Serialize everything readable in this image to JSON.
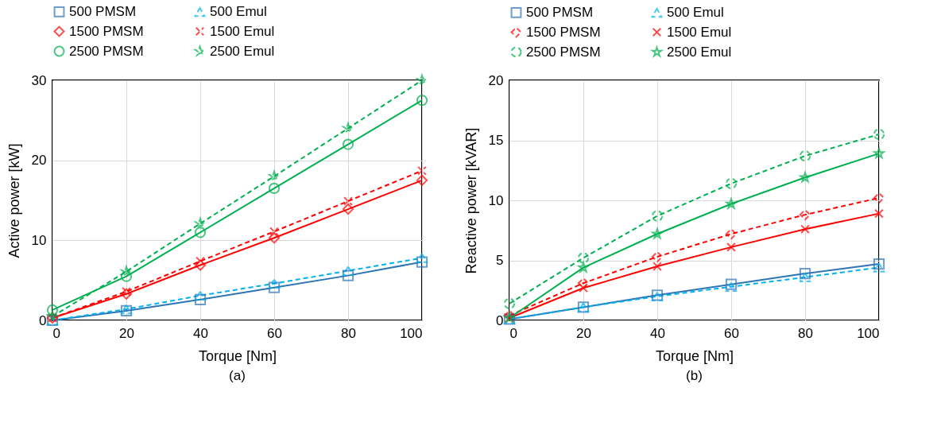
{
  "chart_data": [
    {
      "type": "line",
      "xlabel": "Torque [Nm]",
      "ylabel": "Active power [kW]",
      "x": [
        0,
        20,
        40,
        60,
        80,
        100
      ],
      "xlim": [
        0,
        100
      ],
      "xticks": [
        0,
        20,
        40,
        60,
        80,
        100
      ],
      "ylim": [
        0,
        30
      ],
      "yticks": [
        0,
        10,
        20,
        30
      ],
      "grid": true,
      "legend": "top",
      "annotations": [
        "(a)"
      ],
      "series": [
        {
          "name": "500 PMSM",
          "color": "#2e75b6",
          "marker": "square",
          "line_style": "solid",
          "values": [
            0,
            1.2,
            2.6,
            4.1,
            5.6,
            7.3
          ]
        },
        {
          "name": "500 Emul",
          "color": "#00b0f0",
          "marker": "triangle",
          "line_style": "dashed",
          "values": [
            0,
            1.4,
            3.1,
            4.6,
            6.2,
            7.8
          ]
        },
        {
          "name": "1500 PMSM",
          "color": "#ff0000",
          "marker": "diamond",
          "line_style": "solid",
          "values": [
            0.3,
            3.3,
            6.9,
            10.3,
            13.9,
            17.5
          ]
        },
        {
          "name": "1500 Emul",
          "color": "#ff0000",
          "marker": "cross",
          "line_style": "dashed",
          "values": [
            0.3,
            3.6,
            7.4,
            11.1,
            14.9,
            18.7
          ]
        },
        {
          "name": "2500 PMSM",
          "color": "#00b050",
          "marker": "circle",
          "line_style": "solid",
          "values": [
            1.3,
            5.5,
            11.0,
            16.5,
            22.0,
            27.5
          ]
        },
        {
          "name": "2500 Emul",
          "color": "#00b050",
          "marker": "star",
          "line_style": "dashed",
          "values": [
            0.5,
            6.1,
            12.1,
            18.0,
            24.0,
            30.0
          ]
        }
      ]
    },
    {
      "type": "line",
      "xlabel": "Torque [Nm]",
      "ylabel": "Reactive power [kVAR]",
      "x": [
        0,
        20,
        40,
        60,
        80,
        100
      ],
      "xlim": [
        0,
        100
      ],
      "xticks": [
        0,
        20,
        40,
        60,
        80,
        100
      ],
      "ylim": [
        0,
        20
      ],
      "yticks": [
        0,
        5,
        10,
        15,
        20
      ],
      "grid": true,
      "legend": "top",
      "annotations": [
        "(b)"
      ],
      "series": [
        {
          "name": "500 PMSM",
          "color": "#2e75b6",
          "marker": "square",
          "line_style": "solid",
          "values": [
            0.1,
            1.1,
            2.1,
            3.0,
            3.9,
            4.7
          ]
        },
        {
          "name": "500 Emul",
          "color": "#00b0f0",
          "marker": "triangle",
          "line_style": "dashed",
          "values": [
            0.1,
            1.1,
            2.0,
            2.8,
            3.6,
            4.4
          ]
        },
        {
          "name": "1500 PMSM",
          "color": "#ff0000",
          "marker": "diamond",
          "line_style": "dashed",
          "values": [
            0.4,
            3.1,
            5.3,
            7.2,
            8.8,
            10.2
          ]
        },
        {
          "name": "1500 Emul",
          "color": "#ff0000",
          "marker": "cross",
          "line_style": "solid",
          "values": [
            0.2,
            2.7,
            4.5,
            6.1,
            7.6,
            8.9
          ]
        },
        {
          "name": "2500 PMSM",
          "color": "#00b050",
          "marker": "circle",
          "line_style": "dashed",
          "values": [
            1.4,
            5.2,
            8.7,
            11.4,
            13.7,
            15.5
          ]
        },
        {
          "name": "2500 Emul",
          "color": "#00b050",
          "marker": "star",
          "line_style": "solid",
          "values": [
            0.2,
            4.4,
            7.2,
            9.7,
            11.9,
            13.9
          ]
        }
      ]
    }
  ]
}
